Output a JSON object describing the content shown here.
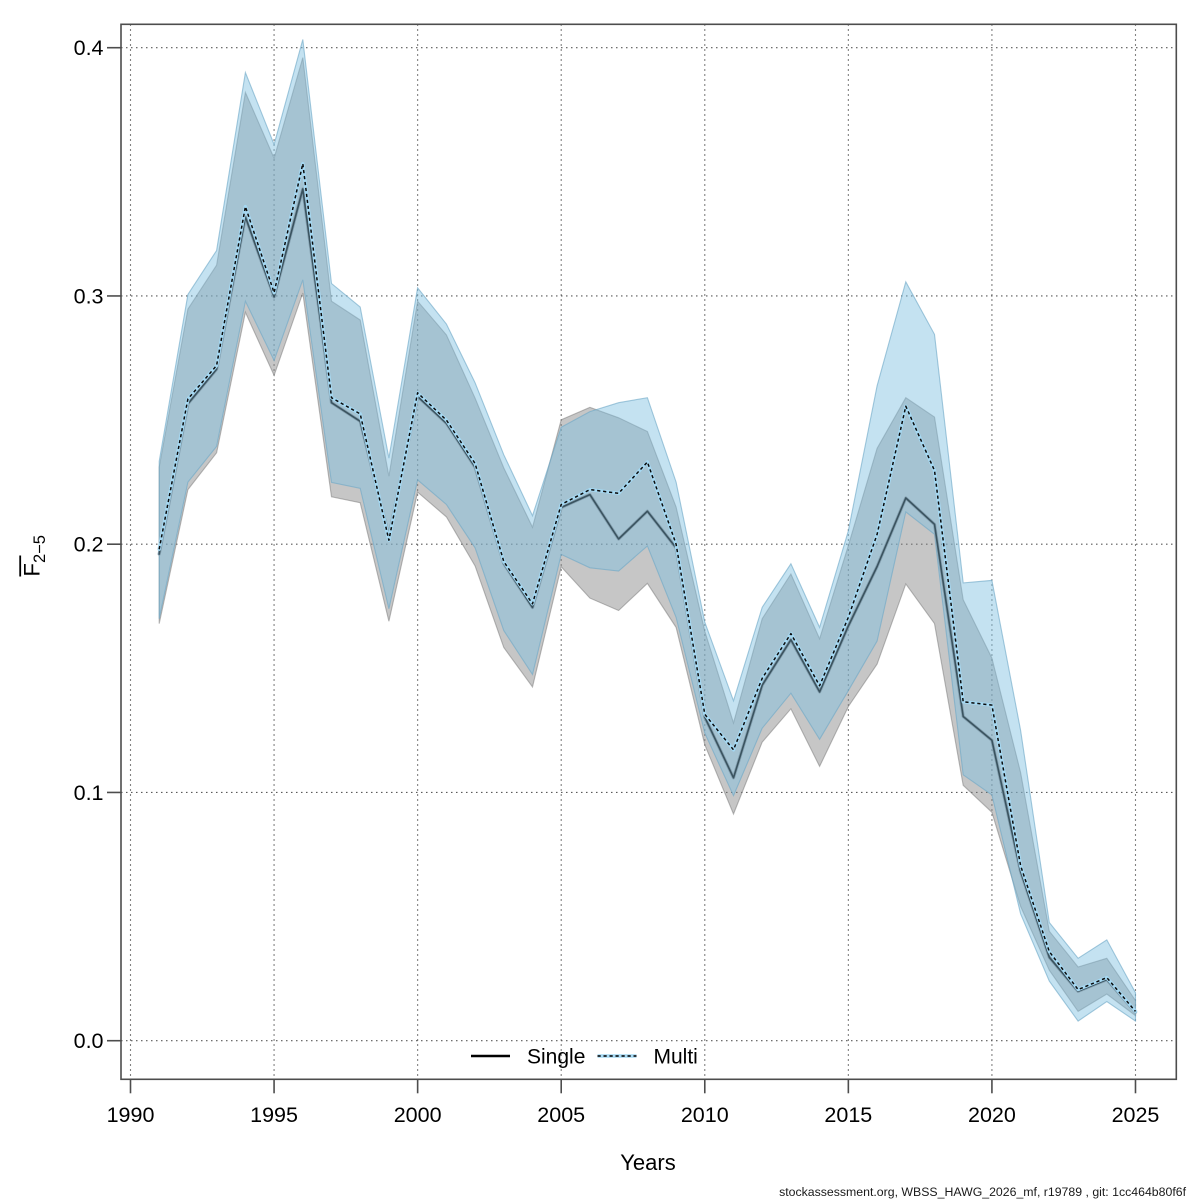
{
  "chart_data": {
    "type": "line",
    "title": "",
    "xlabel": "Years",
    "ylabel_main": "F",
    "ylabel_sub": "2−5",
    "x_ticks": [
      1990,
      1995,
      2000,
      2005,
      2010,
      2015,
      2020,
      2025
    ],
    "y_ticks": [
      0.0,
      0.1,
      0.2,
      0.3,
      0.4
    ],
    "y_tick_labels": [
      "0.0",
      "0.1",
      "0.2",
      "0.3",
      "0.4"
    ],
    "xlim": [
      1989.63,
      2026.47
    ],
    "ylim": [
      -0.0156,
      0.4093
    ],
    "grid": true,
    "legend_position": "bottom",
    "years": [
      1991,
      1992,
      1993,
      1994,
      1995,
      1996,
      1997,
      1998,
      1999,
      2000,
      2001,
      2002,
      2003,
      2004,
      2005,
      2006,
      2007,
      2008,
      2009,
      2010,
      2011,
      2012,
      2013,
      2014,
      2015,
      2016,
      2017,
      2018,
      2019,
      2020,
      2021,
      2022,
      2023,
      2024,
      2025
    ],
    "series": [
      {
        "name": "Single",
        "line_style": "solid",
        "values": [
          0.196,
          0.2565,
          0.2705,
          0.3318,
          0.2996,
          0.3431,
          0.257,
          0.2495,
          0.2031,
          0.2595,
          0.2487,
          0.231,
          0.1922,
          0.1745,
          0.2148,
          0.22,
          0.2021,
          0.2133,
          0.1985,
          0.1303,
          0.1059,
          0.1432,
          0.1615,
          0.1405,
          0.167,
          0.191,
          0.2186,
          0.208,
          0.1306,
          0.121,
          0.0681,
          0.0336,
          0.0199,
          0.0246,
          0.0115
        ],
        "ci_low": [
          0.168,
          0.222,
          0.2368,
          0.2934,
          0.268,
          0.3012,
          0.2191,
          0.2167,
          0.169,
          0.221,
          0.211,
          0.1912,
          0.1584,
          0.1425,
          0.1909,
          0.1783,
          0.1733,
          0.1842,
          0.1665,
          0.1192,
          0.0913,
          0.1203,
          0.1337,
          0.1105,
          0.1346,
          0.1517,
          0.184,
          0.168,
          0.1029,
          0.092,
          0.0541,
          0.0284,
          0.0118,
          0.0188,
          0.0101
        ],
        "ci_high": [
          0.231,
          0.2947,
          0.3124,
          0.382,
          0.3555,
          0.396,
          0.2979,
          0.2903,
          0.2274,
          0.2979,
          0.2843,
          0.2588,
          0.2307,
          0.2068,
          0.2501,
          0.2551,
          0.2509,
          0.2454,
          0.215,
          0.1649,
          0.128,
          0.17,
          0.188,
          0.1619,
          0.1994,
          0.2386,
          0.259,
          0.2512,
          0.1776,
          0.1541,
          0.108,
          0.0441,
          0.0297,
          0.0332,
          0.0162
        ]
      },
      {
        "name": "Multi",
        "line_style": "dotted",
        "values": [
          0.198,
          0.2585,
          0.272,
          0.336,
          0.3013,
          0.3533,
          0.259,
          0.2525,
          0.2016,
          0.261,
          0.25,
          0.2325,
          0.193,
          0.176,
          0.216,
          0.222,
          0.2205,
          0.2331,
          0.2,
          0.1315,
          0.1172,
          0.146,
          0.164,
          0.143,
          0.1705,
          0.204,
          0.2556,
          0.2297,
          0.1365,
          0.1352,
          0.0705,
          0.0359,
          0.0206,
          0.0254,
          0.0118
        ],
        "ci_low": [
          0.17,
          0.225,
          0.2394,
          0.2979,
          0.274,
          0.3065,
          0.2249,
          0.2225,
          0.174,
          0.2259,
          0.216,
          0.1985,
          0.1652,
          0.1475,
          0.1959,
          0.1905,
          0.1892,
          0.1993,
          0.1705,
          0.1239,
          0.0987,
          0.1259,
          0.14,
          0.1214,
          0.141,
          0.161,
          0.213,
          0.204,
          0.1071,
          0.099,
          0.0511,
          0.024,
          0.0079,
          0.0158,
          0.0079
        ],
        "ci_high": [
          0.2334,
          0.3006,
          0.3183,
          0.39,
          0.361,
          0.4033,
          0.305,
          0.2955,
          0.2347,
          0.3033,
          0.2887,
          0.265,
          0.236,
          0.2115,
          0.2471,
          0.2534,
          0.257,
          0.259,
          0.225,
          0.1686,
          0.1369,
          0.1746,
          0.1921,
          0.1665,
          0.2053,
          0.2638,
          0.3057,
          0.2845,
          0.1844,
          0.1854,
          0.125,
          0.0476,
          0.0332,
          0.0406,
          0.0193
        ]
      }
    ],
    "colors": {
      "single_band_fill": "rgba(128,128,128,0.45)",
      "single_band_edge": "rgba(118,118,118,0.5)",
      "single_line_base": "#85a1b1",
      "single_line_core": "rgba(32,55,66,0.74)",
      "multi_band_fill": "rgba(124,190,224,0.45)",
      "multi_band_edge": "rgba(110,168,198,0.62)",
      "multi_line_base": "#a5d8f2",
      "multi_line_dash": "#0a0a0a",
      "grid_color": "#595959",
      "box_color": "#4d4d4d",
      "text_color": "#000000",
      "footer_color": "#1a1a1a"
    }
  },
  "legend": {
    "single_label": "Single",
    "multi_label": "Multi"
  },
  "footer": {
    "text": "stockassessment.org, WBSS_HAWG_2026_mf, r19789 , git: 1cc464b80f6f"
  }
}
